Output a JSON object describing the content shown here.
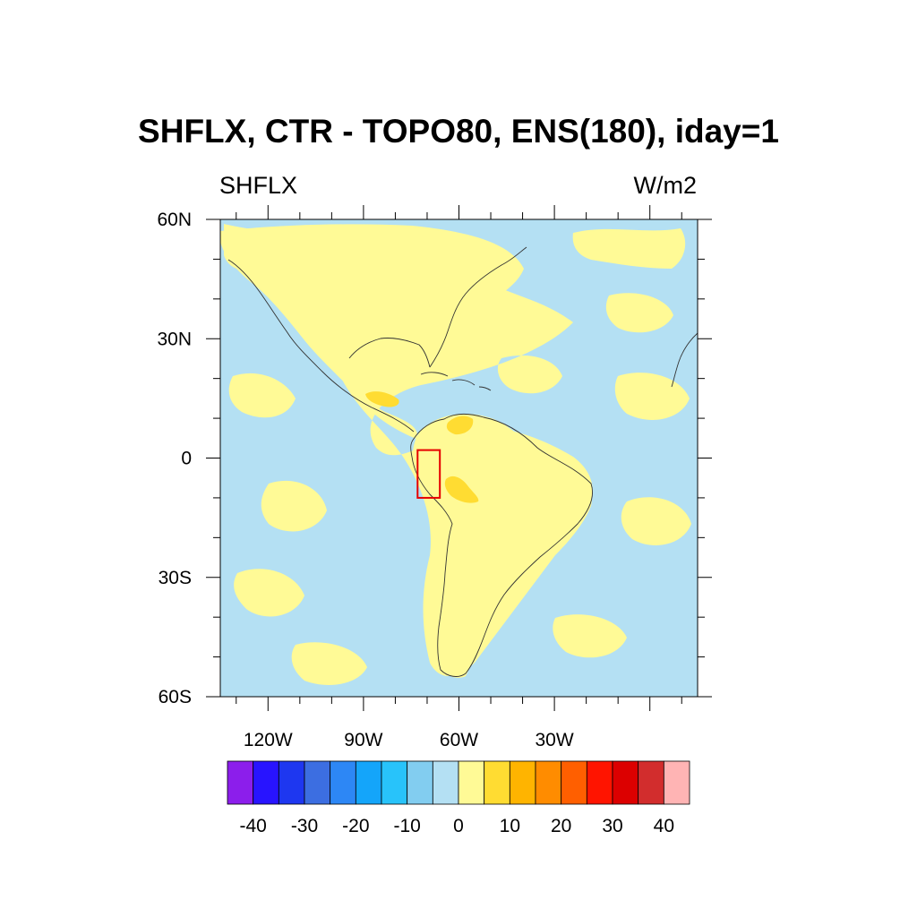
{
  "title": "SHFLX, CTR - TOPO80, ENS(180), iday=1",
  "left_label": "SHFLX",
  "right_label": "W/m2",
  "map": {
    "lon_range": [
      -135,
      15
    ],
    "lat_range": [
      -60,
      60
    ],
    "lat_tick_labels": [
      {
        "lat": 60,
        "text": "60N"
      },
      {
        "lat": 30,
        "text": "30N"
      },
      {
        "lat": 0,
        "text": "0"
      },
      {
        "lat": -30,
        "text": "30S"
      },
      {
        "lat": -60,
        "text": "60S"
      }
    ],
    "lon_tick_labels": [
      {
        "lon": -120,
        "text": "120W"
      },
      {
        "lon": -90,
        "text": "90W"
      },
      {
        "lon": -60,
        "text": "60W"
      },
      {
        "lon": -30,
        "text": "30W"
      }
    ],
    "box": {
      "lon": [
        -73,
        -66
      ],
      "lat": [
        -10,
        2
      ],
      "color": "#e60000"
    },
    "colors": {
      "neg_small": "#b4e0f3",
      "pos_small": "#fffa96",
      "pos_medium": "#ffdc32"
    }
  },
  "colorbar": {
    "colors": [
      "#8c1eeb",
      "#2814ff",
      "#1e37f0",
      "#3c6ee1",
      "#2d87f5",
      "#14a5fa",
      "#28c3fa",
      "#82cdf0",
      "#b4e0f3",
      "#fffa96",
      "#ffdc32",
      "#ffb400",
      "#ff8c00",
      "#ff5f00",
      "#ff1400",
      "#dc0000",
      "#d22d2d",
      "#ffb4b4"
    ],
    "labels": [
      "-40",
      "-30",
      "-20",
      "-10",
      "0",
      "10",
      "20",
      "30",
      "40"
    ]
  }
}
